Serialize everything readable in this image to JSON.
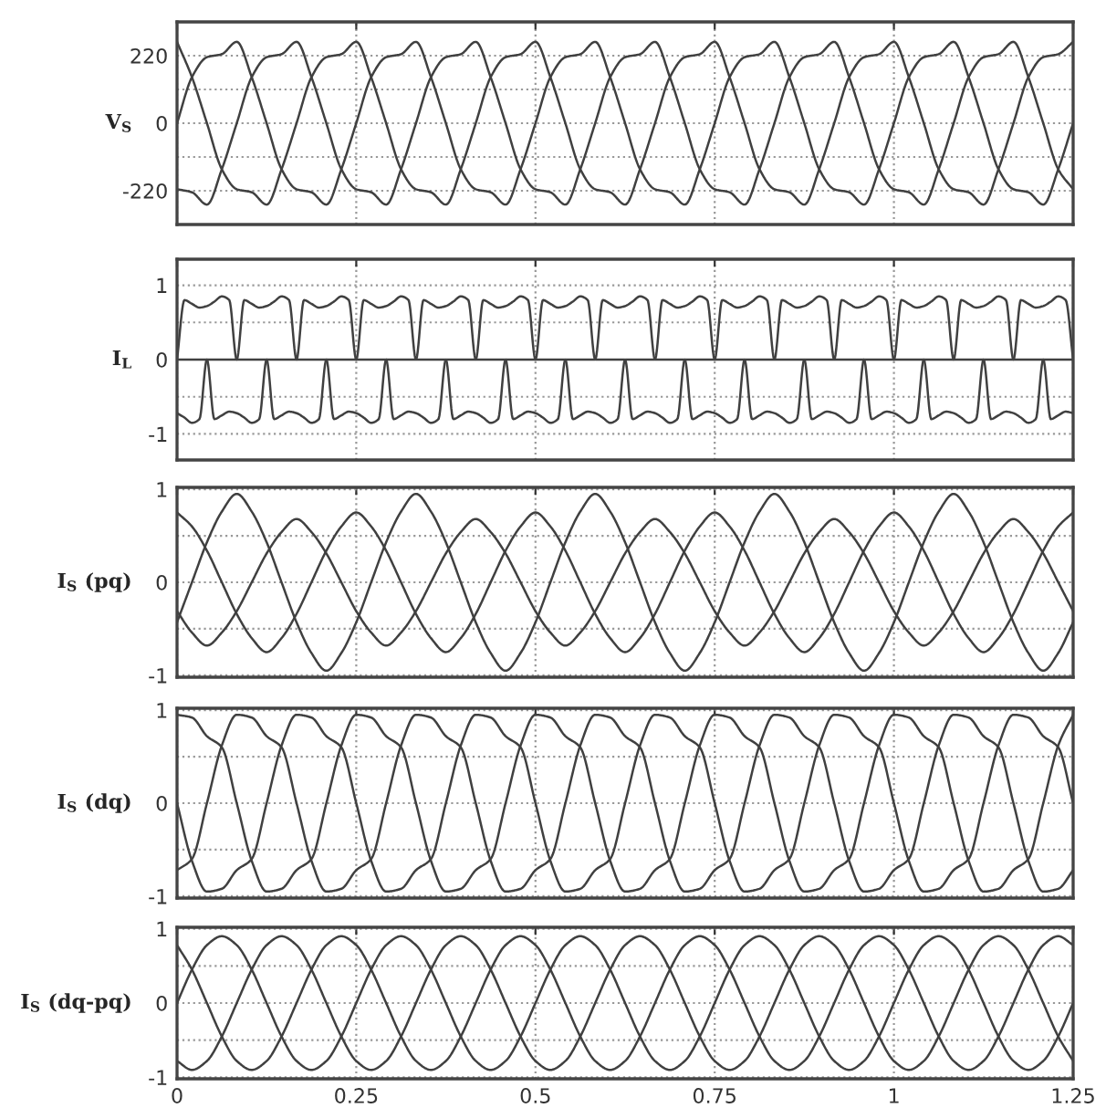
{
  "chart_data": [
    {
      "type": "line",
      "ylabel": "V$_{S}$",
      "xlim": [
        0,
        1.25
      ],
      "xticks": [
        0,
        0.25,
        0.5,
        0.75,
        1,
        1.25
      ],
      "ylim": [
        -330,
        330
      ],
      "yticks": [
        -220,
        {
          "value": -110,
          "label": null
        },
        0,
        {
          "value": 110,
          "label": null
        },
        220
      ],
      "grid": true,
      "tick_labels": "y",
      "line_style": "solid",
      "x": [
        0,
        0.0208,
        0.0417,
        0.0625,
        0.0833,
        0.1042,
        0.125,
        0.1458,
        0.1667,
        0.1875,
        0.2083,
        0.2292,
        0.25,
        0.2708,
        0.2917,
        0.3125,
        0.3333,
        0.3542,
        0.375,
        0.3958,
        0.4167,
        0.4375,
        0.4583,
        0.4792,
        0.5,
        0.5208,
        0.5417,
        0.5625,
        0.5833,
        0.6042,
        0.625,
        0.6458,
        0.6667,
        0.6875,
        0.7083,
        0.7292,
        0.75,
        0.7708,
        0.7917,
        0.8125,
        0.8333,
        0.8542,
        0.875,
        0.8958,
        0.9167,
        0.9375,
        0.9583,
        0.9792,
        1,
        1.0208,
        1.0417,
        1.0625,
        1.0833,
        1.1042,
        1.125,
        1.1458,
        1.1667,
        1.1875,
        1.2083,
        1.2292,
        1.25
      ],
      "series": [
        {
          "color": "#404040",
          "values": [
            0,
            150,
            215,
            225,
            265,
            150,
            0,
            -150,
            -215,
            -225,
            -265,
            -150,
            0,
            150,
            215,
            225,
            265,
            150,
            0,
            -150,
            -215,
            -225,
            -265,
            -150,
            0,
            150,
            215,
            225,
            265,
            150,
            0,
            -150,
            -215,
            -225,
            -265,
            -150,
            0,
            150,
            215,
            225,
            265,
            150,
            0,
            -150,
            -215,
            -225,
            -265,
            -150,
            0,
            150,
            215,
            225,
            265,
            150,
            0,
            -150,
            -215,
            -225,
            -265,
            -150,
            0
          ]
        },
        {
          "color": "#404040",
          "values": [
            -215,
            -225,
            -265,
            -150,
            0,
            150,
            215,
            225,
            265,
            150,
            0,
            -150,
            -215,
            -225,
            -265,
            -150,
            0,
            150,
            215,
            225,
            265,
            150,
            0,
            -150,
            -215,
            -225,
            -265,
            -150,
            0,
            150,
            215,
            225,
            265,
            150,
            0,
            -150,
            -215,
            -225,
            -265,
            -150,
            0,
            150,
            215,
            225,
            265,
            150,
            0,
            -150,
            -215,
            -225,
            -265,
            -150,
            0,
            150,
            215,
            225,
            265,
            150,
            0,
            -150,
            -215
          ]
        },
        {
          "color": "#404040",
          "values": [
            265,
            150,
            0,
            -150,
            -215,
            -225,
            -265,
            -150,
            0,
            150,
            215,
            225,
            265,
            150,
            0,
            -150,
            -215,
            -225,
            -265,
            -150,
            0,
            150,
            215,
            225,
            265,
            150,
            0,
            -150,
            -215,
            -225,
            -265,
            -150,
            0,
            150,
            215,
            225,
            265,
            150,
            0,
            -150,
            -215,
            -225,
            -265,
            -150,
            0,
            150,
            215,
            225,
            265,
            150,
            0,
            -150,
            -215,
            -225,
            -265,
            -150,
            0,
            150,
            215,
            225,
            265
          ]
        }
      ]
    },
    {
      "type": "line",
      "ylabel": "I$_{L}$",
      "xlim": [
        0,
        1.25
      ],
      "xticks": [
        0,
        0.25,
        0.5,
        0.75,
        1,
        1.25
      ],
      "ylim": [
        -1.35,
        1.35
      ],
      "yticks": [
        -1,
        {
          "value": -0.5,
          "label": null
        },
        0,
        {
          "value": 0.5,
          "label": null
        },
        1
      ],
      "grid": true,
      "tick_labels": "y",
      "line_style": "solid",
      "x": [
        0,
        0.0104,
        0.0208,
        0.0313,
        0.0417,
        0.0521,
        0.0625,
        0.0729,
        0.0833,
        0.0938,
        0.1042,
        0.1146,
        0.125,
        0.1354,
        0.1458,
        0.1563,
        0.1667,
        0.1771,
        0.1875,
        0.1979,
        0.2083,
        0.2188,
        0.2292,
        0.2396,
        0.25,
        0.2604,
        0.2708,
        0.2813,
        0.2917,
        0.3021,
        0.3125,
        0.3229,
        0.3333,
        0.3438,
        0.3542,
        0.3646,
        0.375,
        0.3854,
        0.3958,
        0.4063,
        0.4167,
        0.4271,
        0.4375,
        0.4479,
        0.4583,
        0.4688,
        0.4792,
        0.4896,
        0.5,
        0.5104,
        0.5208,
        0.5313,
        0.5417,
        0.5521,
        0.5625,
        0.5729,
        0.5833,
        0.5938,
        0.6042,
        0.6146,
        0.625,
        0.6354,
        0.6458,
        0.6563,
        0.6667,
        0.6771,
        0.6875,
        0.6979,
        0.7083,
        0.7188,
        0.7292,
        0.7396,
        0.75,
        0.7604,
        0.7708,
        0.7813,
        0.7917,
        0.8021,
        0.8125,
        0.8229,
        0.8333,
        0.8438,
        0.8542,
        0.8646,
        0.875,
        0.8854,
        0.8958,
        0.9063,
        0.9167,
        0.9271,
        0.9375,
        0.9479,
        0.9583,
        0.9688,
        0.9792,
        0.9896,
        1,
        1.0104,
        1.0208,
        1.0313,
        1.0417,
        1.0521,
        1.0625,
        1.0729,
        1.0833,
        1.0938,
        1.1042,
        1.1146,
        1.125,
        1.1354,
        1.1458,
        1.1563,
        1.1667,
        1.1771,
        1.1875,
        1.1979,
        1.2083,
        1.2188,
        1.2292,
        1.2396,
        1.25
      ],
      "series": [
        {
          "color": "#404040",
          "values": [
            0,
            0.8,
            0.75,
            0.7,
            0.72,
            0.78,
            0.85,
            0.8,
            0,
            0,
            0,
            0,
            0,
            -0.8,
            -0.75,
            -0.7,
            -0.72,
            -0.78,
            -0.85,
            -0.8,
            0,
            0,
            0,
            0,
            0,
            0.8,
            0.75,
            0.7,
            0.72,
            0.78,
            0.85,
            0.8,
            0,
            0,
            0,
            0,
            0,
            -0.8,
            -0.75,
            -0.7,
            -0.72,
            -0.78,
            -0.85,
            -0.8,
            0,
            0,
            0,
            0,
            0,
            0.8,
            0.75,
            0.7,
            0.72,
            0.78,
            0.85,
            0.8,
            0,
            0,
            0,
            0,
            0,
            -0.8,
            -0.75,
            -0.7,
            -0.72,
            -0.78,
            -0.85,
            -0.8,
            0,
            0,
            0,
            0,
            0,
            0.8,
            0.75,
            0.7,
            0.72,
            0.78,
            0.85,
            0.8,
            0,
            0,
            0,
            0,
            0,
            -0.8,
            -0.75,
            -0.7,
            -0.72,
            -0.78,
            -0.85,
            -0.8,
            0,
            0,
            0,
            0,
            0,
            0.8,
            0.75,
            0.7,
            0.72,
            0.78,
            0.85,
            0.8,
            0,
            0,
            0,
            0,
            0,
            -0.8,
            -0.75,
            -0.7,
            -0.72,
            -0.78,
            -0.85,
            -0.8,
            0,
            0,
            0,
            0,
            0
          ]
        },
        {
          "color": "#404040",
          "values": [
            -0.72,
            -0.78,
            -0.85,
            -0.8,
            0,
            0,
            0,
            0,
            0,
            0.8,
            0.75,
            0.7,
            0.72,
            0.78,
            0.85,
            0.8,
            0,
            0,
            0,
            0,
            0,
            -0.8,
            -0.75,
            -0.7,
            -0.72,
            -0.78,
            -0.85,
            -0.8,
            0,
            0,
            0,
            0,
            0,
            0.8,
            0.75,
            0.7,
            0.72,
            0.78,
            0.85,
            0.8,
            0,
            0,
            0,
            0,
            0,
            -0.8,
            -0.75,
            -0.7,
            -0.72,
            -0.78,
            -0.85,
            -0.8,
            0,
            0,
            0,
            0,
            0,
            0.8,
            0.75,
            0.7,
            0.72,
            0.78,
            0.85,
            0.8,
            0,
            0,
            0,
            0,
            0,
            -0.8,
            -0.75,
            -0.7,
            -0.72,
            -0.78,
            -0.85,
            -0.8,
            0,
            0,
            0,
            0,
            0,
            0.8,
            0.75,
            0.7,
            0.72,
            0.78,
            0.85,
            0.8,
            0,
            0,
            0,
            0,
            0,
            -0.8,
            -0.75,
            -0.7,
            -0.72,
            -0.78,
            -0.85,
            -0.8,
            0,
            0,
            0,
            0,
            0,
            0.8,
            0.75,
            0.7,
            0.72,
            0.78,
            0.85,
            0.8,
            0,
            0,
            0,
            0,
            0,
            -0.8,
            -0.75,
            -0.7,
            -0.72
          ]
        },
        {
          "color": "#404040",
          "values": [
            0,
            0,
            0,
            0,
            0,
            -0.8,
            -0.75,
            -0.7,
            -0.72,
            -0.78,
            -0.85,
            -0.8,
            0,
            0,
            0,
            0,
            0,
            0.8,
            0.75,
            0.7,
            0.72,
            0.78,
            0.85,
            0.8,
            0,
            0,
            0,
            0,
            0,
            -0.8,
            -0.75,
            -0.7,
            -0.72,
            -0.78,
            -0.85,
            -0.8,
            0,
            0,
            0,
            0,
            0,
            0.8,
            0.75,
            0.7,
            0.72,
            0.78,
            0.85,
            0.8,
            0,
            0,
            0,
            0,
            0,
            -0.8,
            -0.75,
            -0.7,
            -0.72,
            -0.78,
            -0.85,
            -0.8,
            0,
            0,
            0,
            0,
            0,
            0.8,
            0.75,
            0.7,
            0.72,
            0.78,
            0.85,
            0.8,
            0,
            0,
            0,
            0,
            0,
            -0.8,
            -0.75,
            -0.7,
            -0.72,
            -0.78,
            -0.85,
            -0.8,
            0,
            0,
            0,
            0,
            0,
            0.8,
            0.75,
            0.7,
            0.72,
            0.78,
            0.85,
            0.8,
            0,
            0,
            0,
            0,
            0,
            -0.8,
            -0.75,
            -0.7,
            -0.72,
            -0.78,
            -0.85,
            -0.8,
            0,
            0,
            0,
            0,
            0,
            0.8,
            0.75,
            0.7,
            0.72,
            0.78,
            0.85,
            0.8,
            0
          ]
        }
      ]
    },
    {
      "type": "line",
      "ylabel": "I$_{S}$ (pq)",
      "xlim": [
        0,
        1.25
      ],
      "xticks": [
        0,
        0.25,
        0.5,
        0.75,
        1,
        1.25
      ],
      "ylim": [
        -1.02,
        1.02
      ],
      "yticks": [
        -1,
        {
          "value": -0.5,
          "label": null
        },
        0,
        {
          "value": 0.5,
          "label": null
        },
        1
      ],
      "grid": true,
      "tick_labels": "y",
      "line_style": "solid",
      "x": [
        0,
        0.0208,
        0.0417,
        0.0625,
        0.0833,
        0.1042,
        0.125,
        0.1458,
        0.1667,
        0.1875,
        0.2083,
        0.2292,
        0.25,
        0.2708,
        0.2917,
        0.3125,
        0.3333,
        0.3542,
        0.375,
        0.3958,
        0.4167,
        0.4375,
        0.4583,
        0.4792,
        0.5,
        0.5208,
        0.5417,
        0.5625,
        0.5833,
        0.6042,
        0.625,
        0.6458,
        0.6667,
        0.6875,
        0.7083,
        0.7292,
        0.75,
        0.7708,
        0.7917,
        0.8125,
        0.8333,
        0.8542,
        0.875,
        0.8958,
        0.9167,
        0.9375,
        0.9583,
        0.9792,
        1,
        1.0208,
        1.0417,
        1.0625,
        1.0833,
        1.1042,
        1.125,
        1.1458,
        1.1667,
        1.1875,
        1.2083,
        1.2292,
        1.25
      ],
      "series": [
        {
          "color": "#404040",
          "values": [
            -0.43,
            0,
            0.43,
            0.76,
            0.95,
            0.76,
            0.43,
            0,
            -0.43,
            -0.76,
            -0.95,
            -0.76,
            -0.43,
            0,
            0.43,
            0.76,
            0.95,
            0.76,
            0.43,
            0,
            -0.43,
            -0.76,
            -0.95,
            -0.76,
            -0.43,
            0,
            0.43,
            0.76,
            0.95,
            0.76,
            0.43,
            0,
            -0.43,
            -0.76,
            -0.95,
            -0.76,
            -0.43,
            0,
            0.43,
            0.76,
            0.95,
            0.76,
            0.43,
            0,
            -0.43,
            -0.76,
            -0.95,
            -0.76,
            -0.43,
            0,
            0.43,
            0.76,
            0.95,
            0.76,
            0.43,
            0,
            -0.43,
            -0.76,
            -0.95,
            -0.76,
            -0.43
          ]
        },
        {
          "color": "#404040",
          "values": [
            -0.31,
            -0.54,
            -0.68,
            -0.54,
            -0.31,
            0,
            0.31,
            0.54,
            0.68,
            0.54,
            0.31,
            0,
            -0.31,
            -0.54,
            -0.68,
            -0.54,
            -0.31,
            0,
            0.31,
            0.54,
            0.68,
            0.54,
            0.31,
            0,
            -0.31,
            -0.54,
            -0.68,
            -0.54,
            -0.31,
            0,
            0.31,
            0.54,
            0.68,
            0.54,
            0.31,
            0,
            -0.31,
            -0.54,
            -0.68,
            -0.54,
            -0.31,
            0,
            0.31,
            0.54,
            0.68,
            0.54,
            0.31,
            0,
            -0.31,
            -0.54,
            -0.68,
            -0.54,
            -0.31,
            0,
            0.31,
            0.54,
            0.68,
            0.54,
            0.31,
            0,
            -0.31
          ]
        },
        {
          "color": "#404040",
          "values": [
            0.75,
            0.6,
            0.34,
            0,
            -0.34,
            -0.6,
            -0.75,
            -0.6,
            -0.34,
            0,
            0.34,
            0.6,
            0.75,
            0.6,
            0.34,
            0,
            -0.34,
            -0.6,
            -0.75,
            -0.6,
            -0.34,
            0,
            0.34,
            0.6,
            0.75,
            0.6,
            0.34,
            0,
            -0.34,
            -0.6,
            -0.75,
            -0.6,
            -0.34,
            0,
            0.34,
            0.6,
            0.75,
            0.6,
            0.34,
            0,
            -0.34,
            -0.6,
            -0.75,
            -0.6,
            -0.34,
            0,
            0.34,
            0.6,
            0.75,
            0.6,
            0.34,
            0,
            -0.34,
            -0.6,
            -0.75,
            -0.6,
            -0.34,
            0,
            0.34,
            0.6,
            0.75
          ]
        }
      ]
    },
    {
      "type": "line",
      "ylabel": "I$_{S}$ (dq)",
      "xlim": [
        0,
        1.25
      ],
      "xticks": [
        0,
        0.25,
        0.5,
        0.75,
        1,
        1.25
      ],
      "ylim": [
        -1.02,
        1.02
      ],
      "yticks": [
        -1,
        {
          "value": -0.5,
          "label": null
        },
        0,
        {
          "value": 0.5,
          "label": null
        },
        1
      ],
      "grid": true,
      "tick_labels": "y",
      "line_style": "solid",
      "x": [
        0,
        0.0208,
        0.0417,
        0.0625,
        0.0833,
        0.1042,
        0.125,
        0.1458,
        0.1667,
        0.1875,
        0.2083,
        0.2292,
        0.25,
        0.2708,
        0.2917,
        0.3125,
        0.3333,
        0.3542,
        0.375,
        0.3958,
        0.4167,
        0.4375,
        0.4583,
        0.4792,
        0.5,
        0.5208,
        0.5417,
        0.5625,
        0.5833,
        0.6042,
        0.625,
        0.6458,
        0.6667,
        0.6875,
        0.7083,
        0.7292,
        0.75,
        0.7708,
        0.7917,
        0.8125,
        0.8333,
        0.8542,
        0.875,
        0.8958,
        0.9167,
        0.9375,
        0.9583,
        0.9792,
        1,
        1.0208,
        1.0417,
        1.0625,
        1.0833,
        1.1042,
        1.125,
        1.1458,
        1.1667,
        1.1875,
        1.2083,
        1.2292,
        1.25
      ],
      "series": [
        {
          "color": "#404040",
          "values": [
            0.95,
            0.92,
            0.72,
            0.6,
            0,
            -0.62,
            -0.95,
            -0.92,
            -0.72,
            -0.6,
            0,
            0.62,
            0.95,
            0.92,
            0.72,
            0.6,
            0,
            -0.62,
            -0.95,
            -0.92,
            -0.72,
            -0.6,
            0,
            0.62,
            0.95,
            0.92,
            0.72,
            0.6,
            0,
            -0.62,
            -0.95,
            -0.92,
            -0.72,
            -0.6,
            0,
            0.62,
            0.95,
            0.92,
            0.72,
            0.6,
            0,
            -0.62,
            -0.95,
            -0.92,
            -0.72,
            -0.6,
            0,
            0.62,
            0.95,
            0.92,
            0.72,
            0.6,
            0,
            -0.62,
            -0.95,
            -0.92,
            -0.72,
            -0.6,
            0,
            0.62,
            0.95
          ]
        },
        {
          "color": "#404040",
          "values": [
            -0.72,
            -0.6,
            0,
            0.62,
            0.95,
            0.92,
            0.72,
            0.6,
            0,
            -0.62,
            -0.95,
            -0.92,
            -0.72,
            -0.6,
            0,
            0.62,
            0.95,
            0.92,
            0.72,
            0.6,
            0,
            -0.62,
            -0.95,
            -0.92,
            -0.72,
            -0.6,
            0,
            0.62,
            0.95,
            0.92,
            0.72,
            0.6,
            0,
            -0.62,
            -0.95,
            -0.92,
            -0.72,
            -0.6,
            0,
            0.62,
            0.95,
            0.92,
            0.72,
            0.6,
            0,
            -0.62,
            -0.95,
            -0.92,
            -0.72,
            -0.6,
            0,
            0.62,
            0.95,
            0.92,
            0.72,
            0.6,
            0,
            -0.62,
            -0.95,
            -0.92,
            -0.72
          ]
        },
        {
          "color": "#404040",
          "values": [
            0,
            -0.62,
            -0.95,
            -0.92,
            -0.72,
            -0.6,
            0,
            0.62,
            0.95,
            0.92,
            0.72,
            0.6,
            0,
            -0.62,
            -0.95,
            -0.92,
            -0.72,
            -0.6,
            0,
            0.62,
            0.95,
            0.92,
            0.72,
            0.6,
            0,
            -0.62,
            -0.95,
            -0.92,
            -0.72,
            -0.6,
            0,
            0.62,
            0.95,
            0.92,
            0.72,
            0.6,
            0,
            -0.62,
            -0.95,
            -0.92,
            -0.72,
            -0.6,
            0,
            0.62,
            0.95,
            0.92,
            0.72,
            0.6,
            0,
            -0.62,
            -0.95,
            -0.92,
            -0.72,
            -0.6,
            0,
            0.62,
            0.95,
            0.92,
            0.72,
            0.6,
            0
          ]
        }
      ]
    },
    {
      "type": "line",
      "ylabel": "I$_{S}$ (dq-pq)",
      "xlim": [
        0,
        1.25
      ],
      "xticks": [
        0,
        0.25,
        0.5,
        0.75,
        1,
        1.25
      ],
      "ylim": [
        -1.02,
        1.02
      ],
      "yticks": [
        -1,
        {
          "value": -0.5,
          "label": null
        },
        0,
        {
          "value": 0.5,
          "label": null
        },
        1
      ],
      "grid": true,
      "line_style": "solid",
      "x": [
        0,
        0.0208,
        0.0417,
        0.0625,
        0.0833,
        0.1042,
        0.125,
        0.1458,
        0.1667,
        0.1875,
        0.2083,
        0.2292,
        0.25,
        0.2708,
        0.2917,
        0.3125,
        0.3333,
        0.3542,
        0.375,
        0.3958,
        0.4167,
        0.4375,
        0.4583,
        0.4792,
        0.5,
        0.5208,
        0.5417,
        0.5625,
        0.5833,
        0.6042,
        0.625,
        0.6458,
        0.6667,
        0.6875,
        0.7083,
        0.7292,
        0.75,
        0.7708,
        0.7917,
        0.8125,
        0.8333,
        0.8542,
        0.875,
        0.8958,
        0.9167,
        0.9375,
        0.9583,
        0.9792,
        1,
        1.0208,
        1.0417,
        1.0625,
        1.0833,
        1.1042,
        1.125,
        1.1458,
        1.1667,
        1.1875,
        1.2083,
        1.2292,
        1.25
      ],
      "series": [
        {
          "color": "#404040",
          "values": [
            0,
            0.45,
            0.78,
            0.9,
            0.78,
            0.45,
            0,
            -0.45,
            -0.78,
            -0.9,
            -0.78,
            -0.45,
            0,
            0.45,
            0.78,
            0.9,
            0.78,
            0.45,
            0,
            -0.45,
            -0.78,
            -0.9,
            -0.78,
            -0.45,
            0,
            0.45,
            0.78,
            0.9,
            0.78,
            0.45,
            0,
            -0.45,
            -0.78,
            -0.9,
            -0.78,
            -0.45,
            0,
            0.45,
            0.78,
            0.9,
            0.78,
            0.45,
            0,
            -0.45,
            -0.78,
            -0.9,
            -0.78,
            -0.45,
            0,
            0.45,
            0.78,
            0.9,
            0.78,
            0.45,
            0,
            -0.45,
            -0.78,
            -0.9,
            -0.78,
            -0.45,
            0
          ]
        },
        {
          "color": "#404040",
          "values": [
            -0.78,
            -0.9,
            -0.78,
            -0.45,
            0,
            0.45,
            0.78,
            0.9,
            0.78,
            0.45,
            0,
            -0.45,
            -0.78,
            -0.9,
            -0.78,
            -0.45,
            0,
            0.45,
            0.78,
            0.9,
            0.78,
            0.45,
            0,
            -0.45,
            -0.78,
            -0.9,
            -0.78,
            -0.45,
            0,
            0.45,
            0.78,
            0.9,
            0.78,
            0.45,
            0,
            -0.45,
            -0.78,
            -0.9,
            -0.78,
            -0.45,
            0,
            0.45,
            0.78,
            0.9,
            0.78,
            0.45,
            0,
            -0.45,
            -0.78,
            -0.9,
            -0.78,
            -0.45,
            0,
            0.45,
            0.78,
            0.9,
            0.78,
            0.45,
            0,
            -0.45,
            -0.78
          ]
        },
        {
          "color": "#404040",
          "values": [
            0.78,
            0.45,
            0,
            -0.45,
            -0.78,
            -0.9,
            -0.78,
            -0.45,
            0,
            0.45,
            0.78,
            0.9,
            0.78,
            0.45,
            0,
            -0.45,
            -0.78,
            -0.9,
            -0.78,
            -0.45,
            0,
            0.45,
            0.78,
            0.9,
            0.78,
            0.45,
            0,
            -0.45,
            -0.78,
            -0.9,
            -0.78,
            -0.45,
            0,
            0.45,
            0.78,
            0.9,
            0.78,
            0.45,
            0,
            -0.45,
            -0.78,
            -0.9,
            -0.78,
            -0.45,
            0,
            0.45,
            0.78,
            0.9,
            0.78,
            0.45,
            0,
            -0.45,
            -0.78,
            -0.9,
            -0.78,
            -0.45,
            0,
            0.45,
            0.78,
            0.9,
            0.78
          ]
        }
      ]
    }
  ]
}
